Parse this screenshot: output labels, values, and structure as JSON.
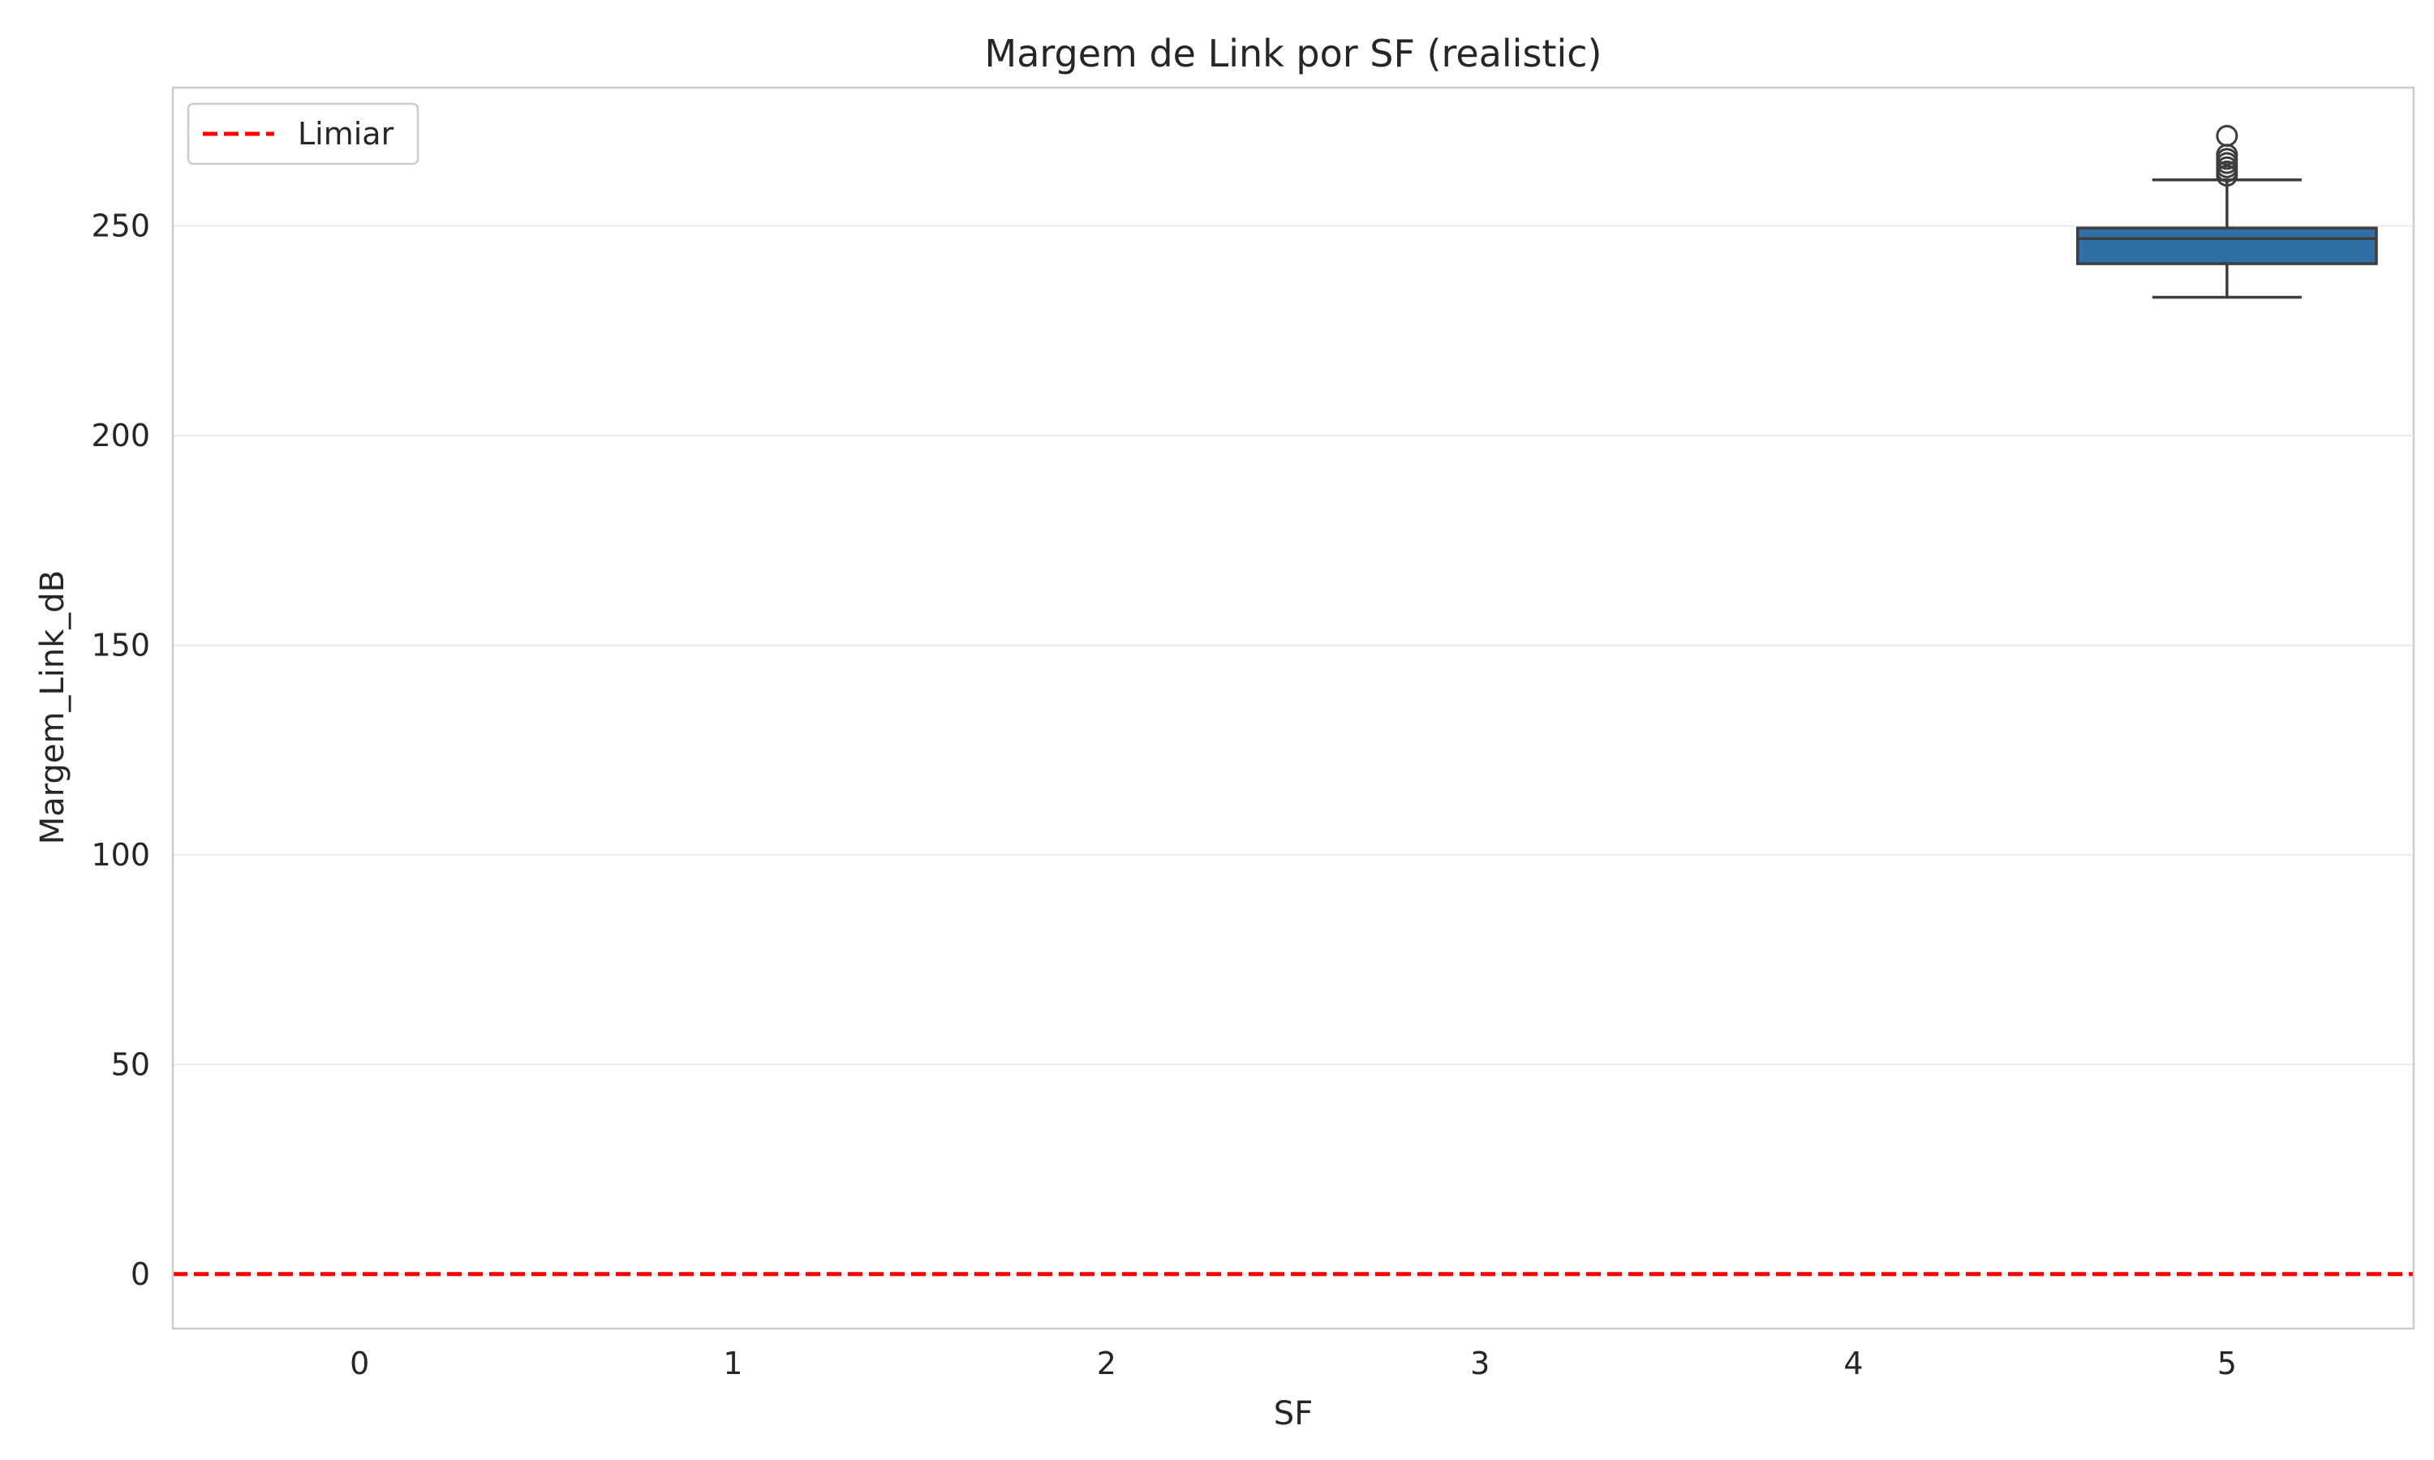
{
  "chart_data": {
    "type": "box",
    "title": "Margem de Link por SF (realistic)",
    "xlabel": "SF",
    "ylabel": "Margem_Link_dB",
    "categories": [
      "0",
      "1",
      "2",
      "3",
      "4",
      "5"
    ],
    "ylim": [
      -13,
      283
    ],
    "yticks": [
      0,
      50,
      100,
      150,
      200,
      250
    ],
    "grid": true,
    "boxes": [
      {
        "category": "5",
        "whisker_low": 233,
        "q1": 241,
        "median": 247,
        "q3": 249.5,
        "whisker_high": 261,
        "outliers": [
          262,
          263,
          264,
          265,
          266,
          267,
          271.5
        ]
      }
    ],
    "reference_line": {
      "label": "Limiar",
      "y": 0,
      "color": "#ff0000",
      "style": "dashed"
    },
    "legend": {
      "position": "top-left",
      "entries": [
        "Limiar"
      ]
    },
    "colors": {
      "box_fill": "#2f6fa5",
      "box_edge": "#3d3d3d",
      "grid": "#ebebeb",
      "frame": "#cccccc"
    }
  }
}
